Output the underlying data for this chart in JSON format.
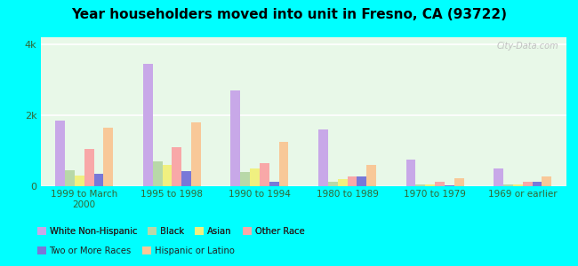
{
  "title": "Year householders moved into unit in Fresno, CA (93722)",
  "categories": [
    "1999 to March\n2000",
    "1995 to 1998",
    "1990 to 1994",
    "1980 to 1989",
    "1970 to 1979",
    "1969 or earlier"
  ],
  "series": {
    "White Non-Hispanic": [
      1850,
      3450,
      2700,
      1600,
      750,
      500
    ],
    "Black": [
      450,
      700,
      400,
      130,
      50,
      50
    ],
    "Asian": [
      300,
      600,
      500,
      200,
      50,
      50
    ],
    "Other Race": [
      1050,
      1100,
      650,
      280,
      130,
      130
    ],
    "Two or More Races": [
      350,
      420,
      130,
      280,
      20,
      130
    ],
    "Hispanic or Latino": [
      1650,
      1800,
      1250,
      600,
      220,
      280
    ]
  },
  "colors": {
    "White Non-Hispanic": "#c8a8e8",
    "Black": "#b8d8a8",
    "Asian": "#f0f080",
    "Other Race": "#f8a8a8",
    "Two or More Races": "#7878d8",
    "Hispanic or Latino": "#f8c898"
  },
  "ylim": [
    0,
    4200
  ],
  "yticks": [
    0,
    2000,
    4000
  ],
  "ytick_labels": [
    "0",
    "2k",
    "4k"
  ],
  "background_color": "#e8f8e8",
  "outer_background": "#00ffff",
  "watermark": "City-Data.com",
  "legend_row1": [
    "White Non-Hispanic",
    "Black",
    "Asian",
    "Other Race"
  ],
  "legend_row2": [
    "Two or More Races",
    "Hispanic or Latino"
  ]
}
